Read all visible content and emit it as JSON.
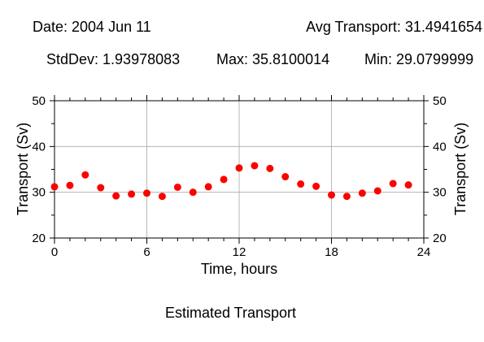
{
  "header": {
    "date": "Date: 2004 Jun 11",
    "avg": "Avg Transport: 31.4941654",
    "stddev": "StdDev: 1.93978083",
    "max": "Max: 35.8100014",
    "min": "Min: 29.0799999"
  },
  "caption": "Estimated Transport",
  "chart_data": {
    "type": "scatter",
    "xlabel": "Time, hours",
    "ylabel": "Transport (Sv)",
    "y2label": "Transport (Sv)",
    "xlim": [
      0,
      24
    ],
    "ylim": [
      20,
      50
    ],
    "xticks": [
      0,
      6,
      12,
      18,
      24
    ],
    "yticks": [
      20,
      30,
      40,
      50
    ],
    "grid": true,
    "marker_color": "#ff0000",
    "x": [
      0,
      1,
      2,
      3,
      4,
      5,
      6,
      7,
      8,
      9,
      10,
      11,
      12,
      13,
      14,
      15,
      16,
      17,
      18,
      19,
      20,
      21,
      22,
      23
    ],
    "y": [
      31.2,
      31.5,
      33.8,
      31.0,
      29.2,
      29.6,
      29.8,
      29.1,
      31.1,
      30.0,
      31.2,
      32.8,
      35.3,
      35.8,
      35.2,
      33.4,
      31.8,
      31.3,
      29.4,
      29.1,
      29.8,
      30.3,
      31.9,
      31.6
    ]
  }
}
